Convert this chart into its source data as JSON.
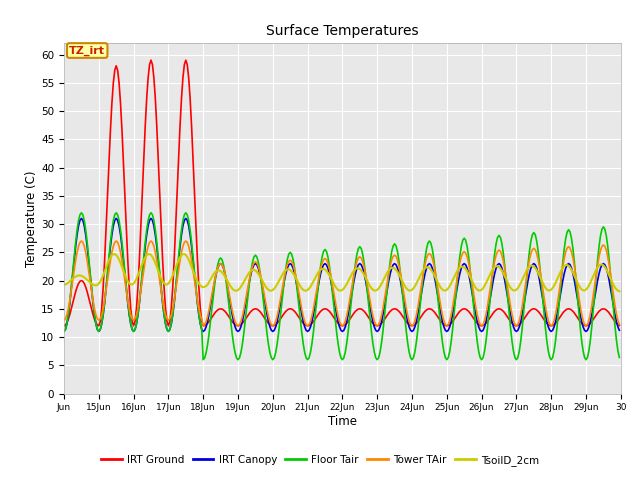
{
  "title": "Surface Temperatures",
  "xlabel": "Time",
  "ylabel": "Temperature (C)",
  "ylim": [
    0,
    62
  ],
  "yticks": [
    0,
    5,
    10,
    15,
    20,
    25,
    30,
    35,
    40,
    45,
    50,
    55,
    60
  ],
  "fig_bg_color": "#ffffff",
  "plot_bg_color": "#e8e8e8",
  "series": {
    "IRT Ground": {
      "color": "#ff0000",
      "lw": 1.2
    },
    "IRT Canopy": {
      "color": "#0000dd",
      "lw": 1.2
    },
    "Floor Tair": {
      "color": "#00cc00",
      "lw": 1.2
    },
    "Tower TAir": {
      "color": "#ff8800",
      "lw": 1.2
    },
    "TsoilD_2cm": {
      "color": "#cccc00",
      "lw": 1.5
    }
  },
  "annotation_text": "TZ_irt",
  "annotation_bbox": {
    "boxstyle": "round,pad=0.2",
    "fc": "#ffffaa",
    "ec": "#cc8800",
    "lw": 1.5
  },
  "annotation_color": "#cc2200",
  "xlim": [
    14.0,
    30.0
  ],
  "tick_day_start": 14,
  "tick_day_end": 30
}
